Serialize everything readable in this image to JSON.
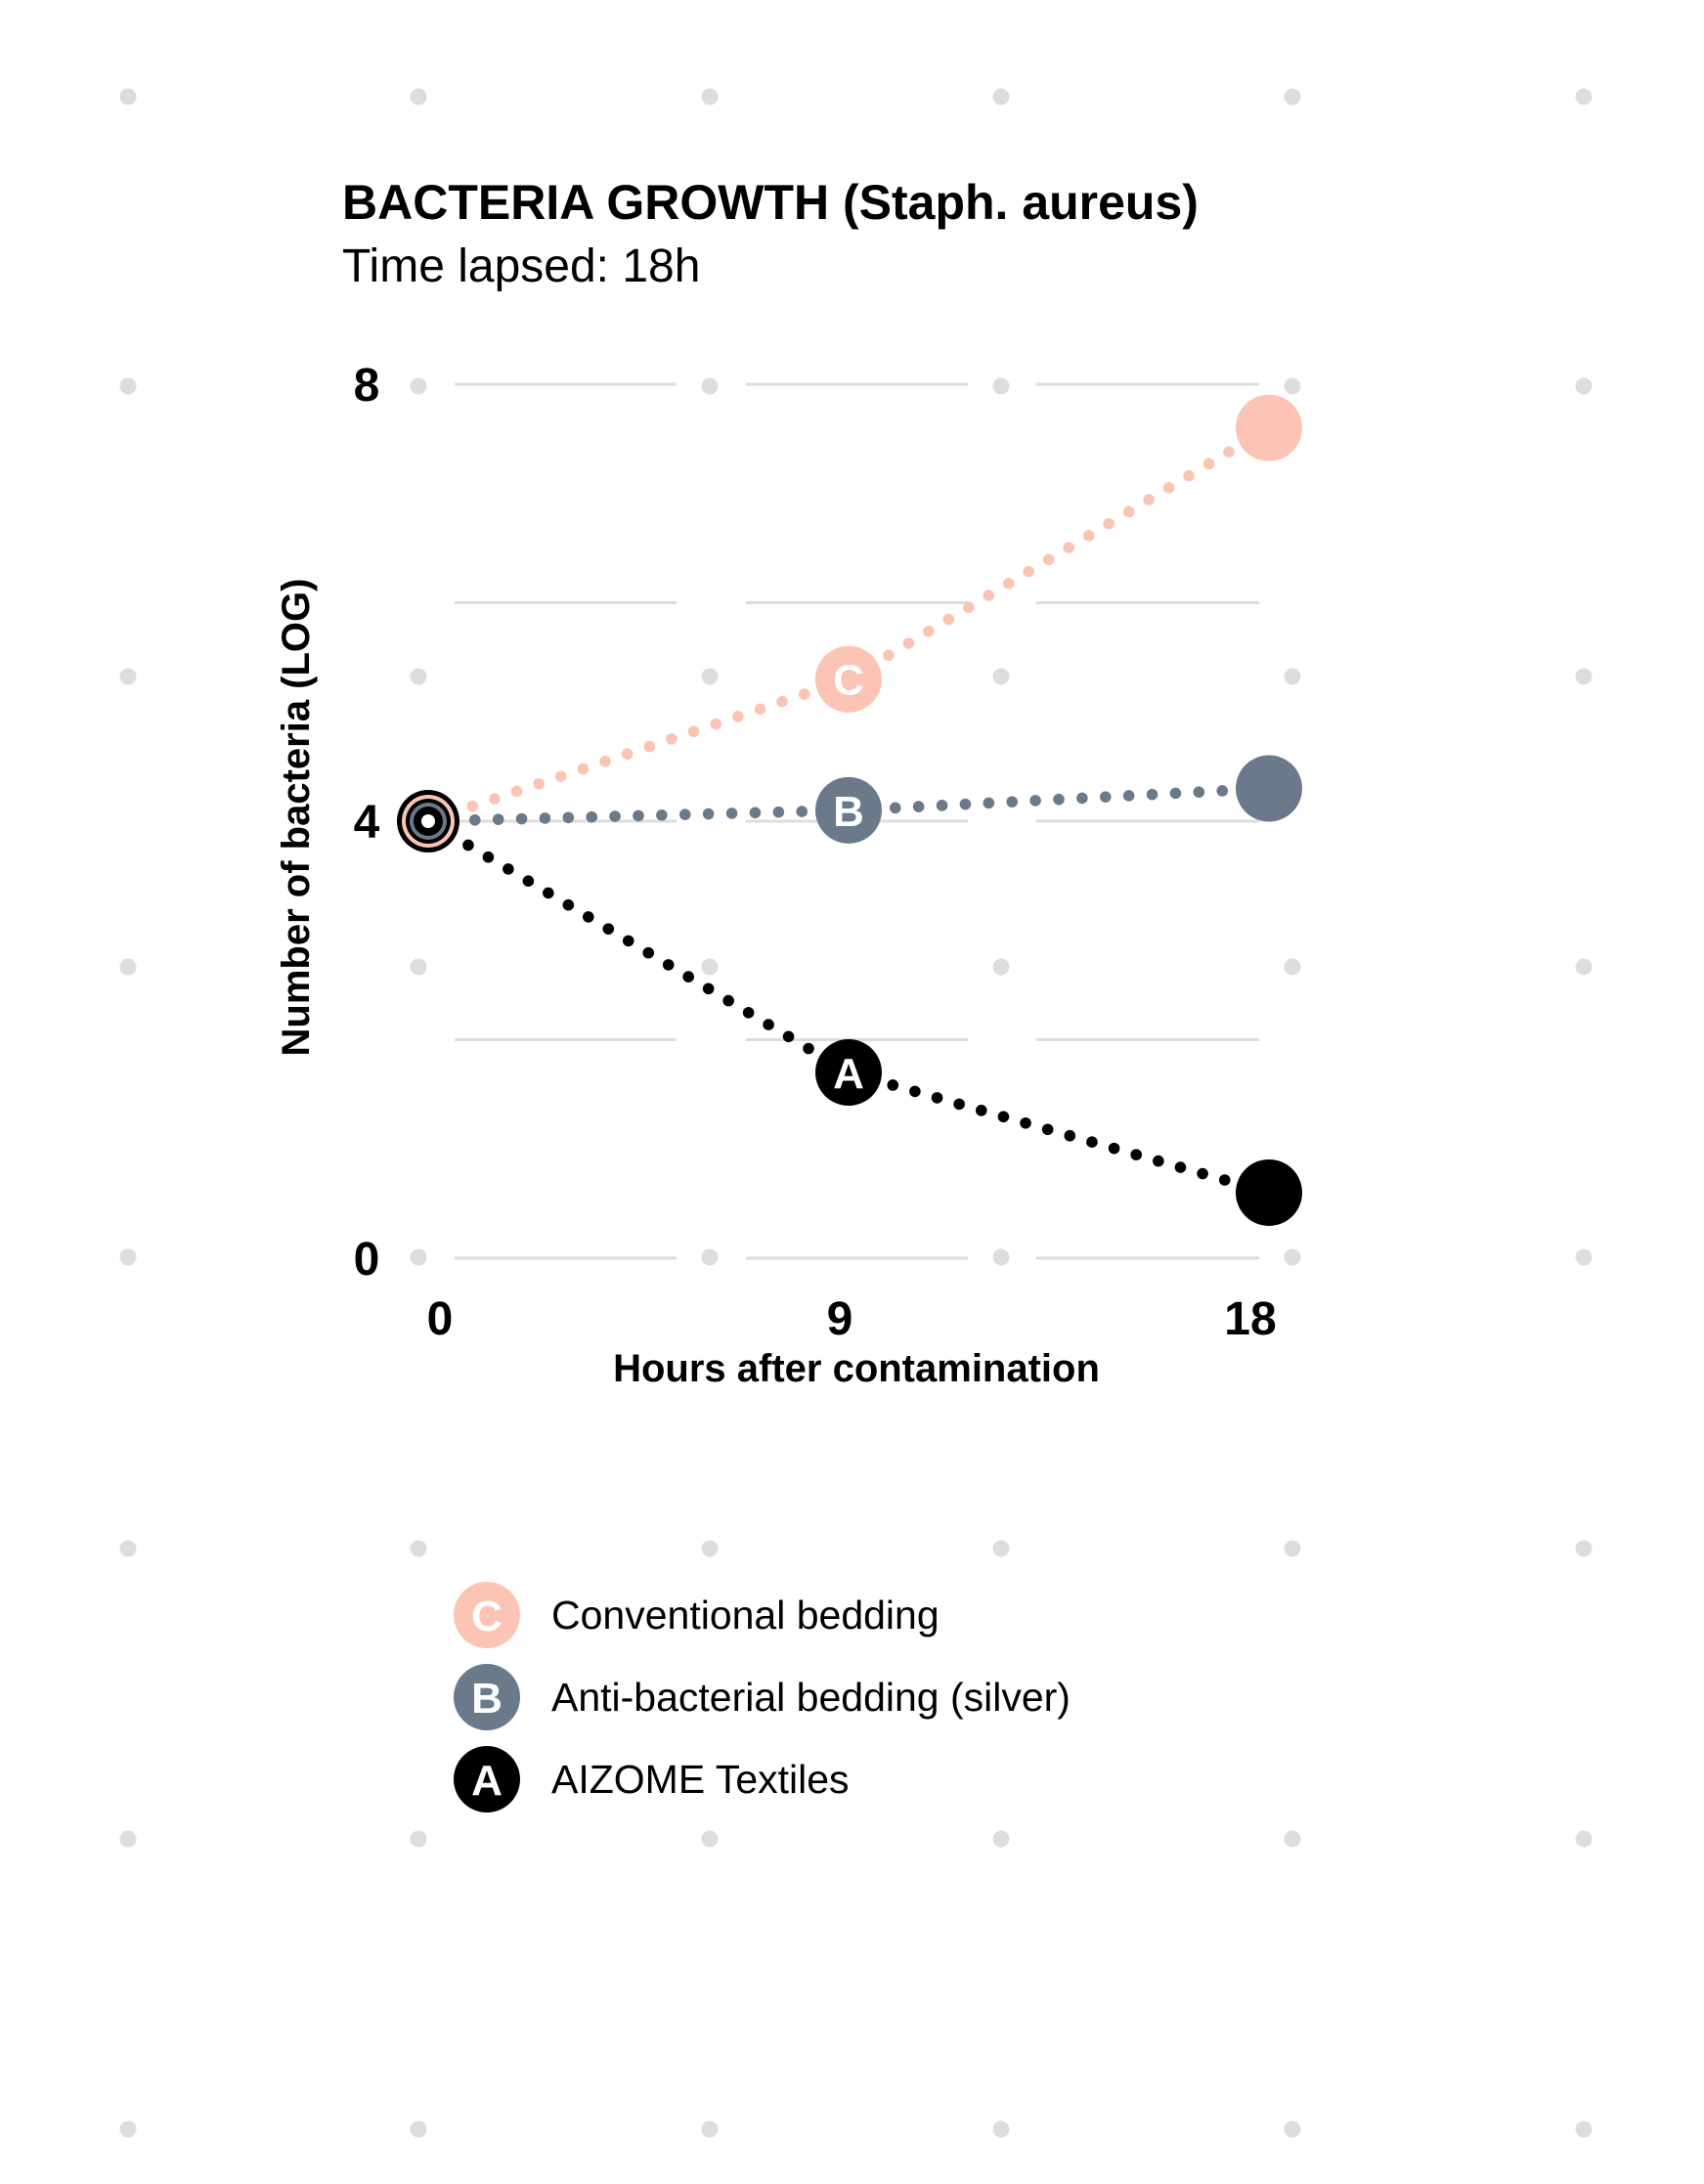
{
  "chart_data": {
    "type": "line",
    "title": "BACTERIA GROWTH (Staph. aureus)",
    "subtitle": "Time lapsed: 18h",
    "xlabel": "Hours after contamination",
    "ylabel": "Number of bacteria (LOG)",
    "x": [
      0,
      9,
      18
    ],
    "x_ticks": [
      "0",
      "9",
      "18"
    ],
    "y_ticks": [
      "0",
      "4",
      "8"
    ],
    "xlim": [
      0,
      18
    ],
    "ylim": [
      0,
      8
    ],
    "grid": true,
    "legend_position": "bottom",
    "series": [
      {
        "name": "Conventional bedding",
        "letter": "C",
        "color": "#fcc4b4",
        "values": [
          4.0,
          5.3,
          7.6
        ]
      },
      {
        "name": "Anti-bacterial bedding (silver)",
        "letter": "B",
        "color": "#6b7a8b",
        "values": [
          4.0,
          4.1,
          4.3
        ]
      },
      {
        "name": "AIZOME Textiles",
        "letter": "A",
        "color": "#000000",
        "values": [
          4.0,
          1.7,
          0.6
        ]
      }
    ]
  },
  "colors": {
    "grid": "#dddddd",
    "dots": "#dddddd",
    "text": "#000000"
  }
}
